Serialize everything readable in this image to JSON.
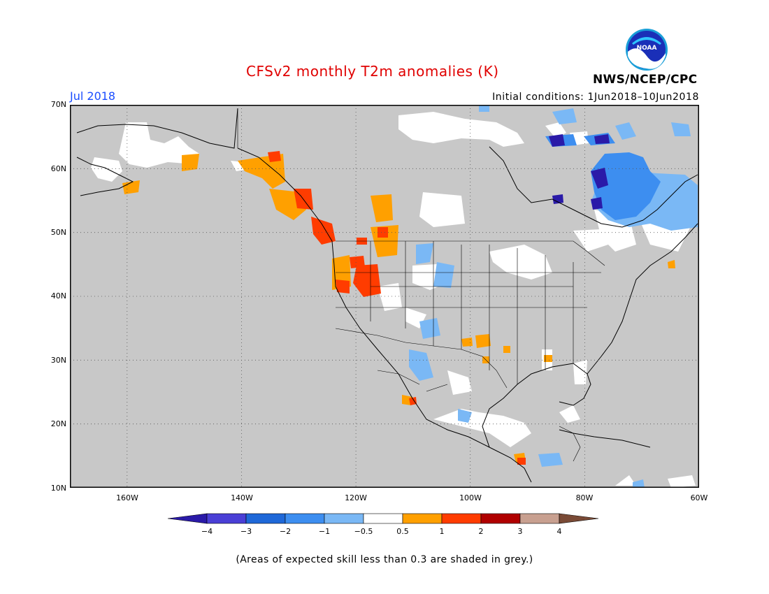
{
  "title": "CFSv2 monthly T2m anomalies (K)",
  "month_label": "Jul 2018",
  "initial_conditions": "Initial conditions: 1Jun2018–10Jun2018",
  "agency": "NWS/NCEP/CPC",
  "logo_text": "NOAA",
  "footnote": "(Areas of expected skill less than 0.3 are shaded in grey.)",
  "map": {
    "lon_range": [
      -170,
      -60
    ],
    "lat_range": [
      10,
      70
    ],
    "lat_ticks": [
      "70N",
      "60N",
      "50N",
      "40N",
      "30N",
      "20N",
      "10N"
    ],
    "lon_ticks": [
      "160W",
      "140W",
      "120W",
      "100W",
      "80W",
      "60W"
    ],
    "background_color": "#c8c8c8",
    "gridlines": "dotted"
  },
  "colorbar": {
    "ticks": [
      "−4",
      "−3",
      "−2",
      "−1",
      "−0.5",
      "0.5",
      "1",
      "2",
      "3",
      "4"
    ],
    "colors": [
      "#2a1aa8",
      "#4a3fd6",
      "#1f68d8",
      "#3d8ef0",
      "#7ab8f5",
      "#ffffff",
      "#ffa000",
      "#ff3c00",
      "#b00000",
      "#c8a090",
      "#7a4a36"
    ]
  }
}
